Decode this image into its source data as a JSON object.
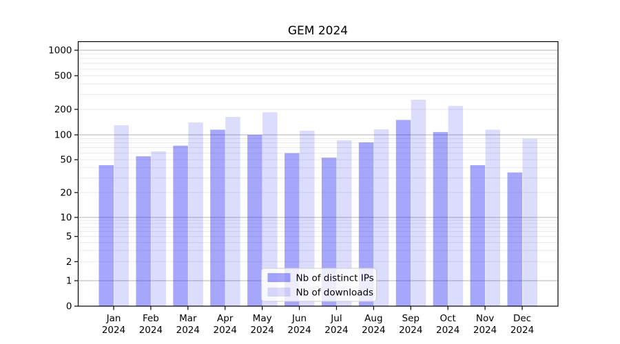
{
  "chart_data": {
    "type": "bar",
    "title": "GEM 2024",
    "categories": [
      "Jan",
      "Feb",
      "Mar",
      "Apr",
      "May",
      "Jun",
      "Jul",
      "Aug",
      "Sep",
      "Oct",
      "Nov",
      "Dec"
    ],
    "category_year": "2024",
    "series": [
      {
        "name": "Nb of distinct IPs",
        "color": "#0d0df2",
        "alpha": 0.37,
        "values": [
          43,
          55,
          74,
          115,
          100,
          60,
          53,
          81,
          150,
          108,
          43,
          35
        ]
      },
      {
        "name": "Nb of downloads",
        "color": "#0d0df2",
        "alpha": 0.145,
        "values": [
          130,
          63,
          140,
          163,
          185,
          112,
          86,
          116,
          260,
          220,
          115,
          90
        ]
      }
    ],
    "yticks": [
      0,
      1,
      2,
      5,
      10,
      20,
      50,
      100,
      200,
      500,
      1000
    ],
    "xlabel": "",
    "ylabel": "",
    "yscale": "symlog",
    "ylim": [
      0,
      1300
    ],
    "grid": true,
    "legend": {
      "position": "lower center",
      "entries": [
        "Nb of distinct IPs",
        "Nb of downloads"
      ],
      "background": "#ffffff",
      "background_alpha": 0.8,
      "border_color": "#cccccc"
    },
    "colors": {
      "grid_major": "#b3b3b3",
      "grid_minor": "#e9e9e9",
      "axis": "#000000",
      "bar_dark_rendered": "#a1a1fa",
      "bar_light_rendered": "#dadafd"
    }
  }
}
